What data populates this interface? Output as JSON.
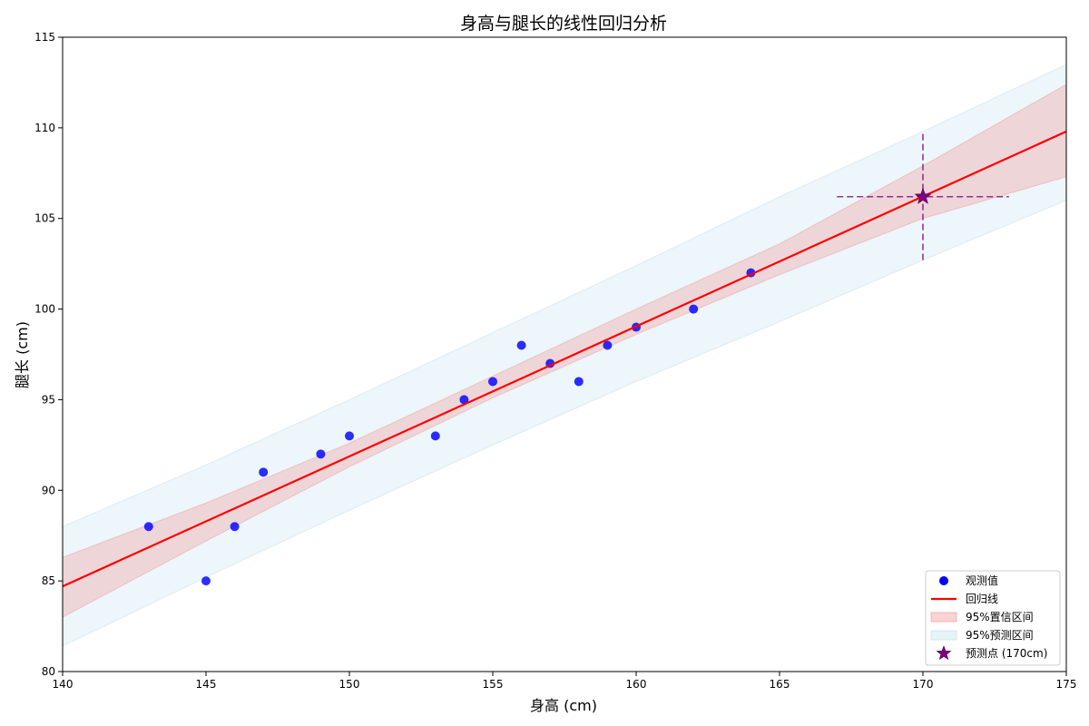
{
  "chart_data": {
    "type": "scatter",
    "title": "身高与腿长的线性回归分析",
    "xlabel": "身高 (cm)",
    "ylabel": "腿长 (cm)",
    "xlim": [
      140,
      175
    ],
    "ylim": [
      80,
      115
    ],
    "xticks": [
      "140",
      "145",
      "150",
      "155",
      "160",
      "165",
      "170",
      "175"
    ],
    "yticks": [
      "80",
      "85",
      "90",
      "95",
      "100",
      "105",
      "110",
      "115"
    ],
    "grid": false,
    "legend_position": "lower-right",
    "colors": {
      "points": "#0000ff",
      "regression": "#ff0000",
      "confidence": "#f08080",
      "prediction": "#add8e6",
      "predicted_point": "#800080"
    },
    "observed": {
      "x": [
        143,
        145,
        146,
        147,
        149,
        150,
        153,
        154,
        155,
        156,
        157,
        158,
        159,
        160,
        162,
        164
      ],
      "y": [
        88,
        85,
        88,
        91,
        92,
        93,
        93,
        95,
        96,
        98,
        97,
        96,
        98,
        99,
        100,
        102
      ]
    },
    "regression_line": {
      "x": [
        140,
        175
      ],
      "y": [
        84.7,
        109.8
      ]
    },
    "confidence_band": {
      "x": [
        140,
        145,
        150,
        155,
        160,
        165,
        170,
        175
      ],
      "lower": [
        83.0,
        87.2,
        91.3,
        95.1,
        98.6,
        101.9,
        105.0,
        107.3
      ],
      "upper": [
        86.3,
        89.3,
        92.6,
        96.3,
        100.0,
        103.6,
        107.9,
        112.4
      ]
    },
    "prediction_band": {
      "x": [
        140,
        145,
        150,
        155,
        160,
        165,
        170,
        175
      ],
      "lower": [
        81.4,
        85.2,
        88.9,
        92.5,
        96.0,
        99.3,
        102.7,
        106.0
      ],
      "upper": [
        88.0,
        91.4,
        95.0,
        98.7,
        102.4,
        106.2,
        109.8,
        113.5
      ]
    },
    "predicted_point": {
      "x": 170,
      "y": 106.2,
      "ci_x": [
        167,
        173
      ],
      "ci_y": [
        102.7,
        109.8
      ]
    },
    "legend": [
      "观测值",
      "回归线",
      "95%置信区间",
      "95%预测区间",
      "预测点 (170cm)"
    ]
  }
}
